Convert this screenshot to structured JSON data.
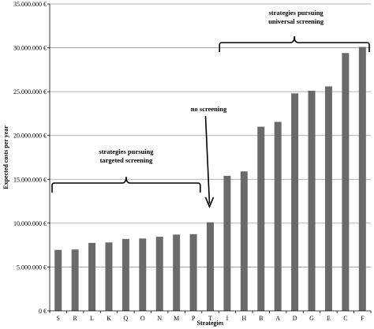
{
  "chart_data": {
    "type": "bar",
    "title": "",
    "xlabel": "Strategies",
    "ylabel": "Expected costs per year",
    "ylim": [
      0,
      35000000
    ],
    "ytick_labels": [
      "0 €",
      "5.000.000 €",
      "10.000.000 €",
      "15.000.000 €",
      "20.000.000 €",
      "25.000.000 €",
      "30.000.000 €",
      "35.000.000 €"
    ],
    "grid": true,
    "bar_color": "#6a6a6a",
    "categories": [
      "S",
      "R",
      "L",
      "K",
      "Q",
      "O",
      "N",
      "M",
      "P",
      "T",
      "I",
      "H",
      "B",
      "A",
      "D",
      "G",
      "E",
      "C",
      "F"
    ],
    "values": [
      6950000,
      7000000,
      7750000,
      7800000,
      8200000,
      8250000,
      8450000,
      8700000,
      8750000,
      10100000,
      15400000,
      15900000,
      21000000,
      21550000,
      24800000,
      25100000,
      25600000,
      29400000,
      30100000
    ],
    "annotations": [
      {
        "id": "targeted",
        "lines": [
          "strategies pursuing",
          "targeted screening"
        ],
        "from": "S",
        "to": "P"
      },
      {
        "id": "noscreen",
        "lines": [
          "no screening"
        ],
        "target": "T"
      },
      {
        "id": "universal",
        "lines": [
          "strategies pursuing",
          "universal screening"
        ],
        "from": "I",
        "to": "F"
      }
    ]
  }
}
